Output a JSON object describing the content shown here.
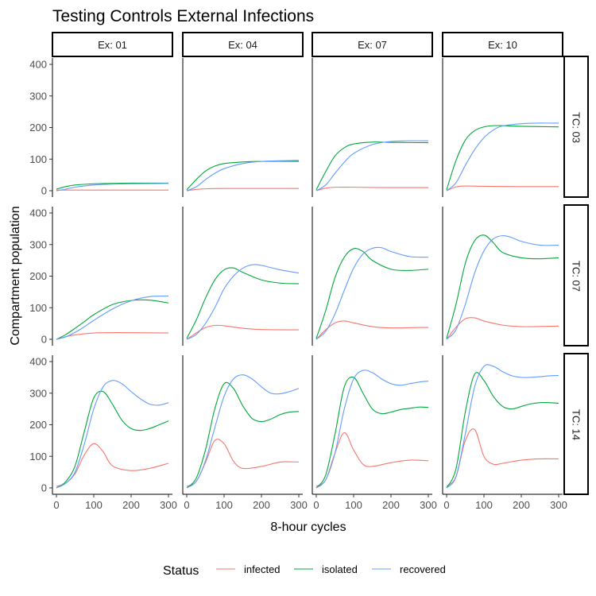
{
  "chart_data": {
    "type": "line",
    "title": "Testing Controls External Infections",
    "xlabel": "8-hour cycles",
    "ylabel": "Compartment population",
    "xlim": [
      0,
      300
    ],
    "ylim": [
      0,
      400
    ],
    "x_ticks": [
      0,
      100,
      200,
      300
    ],
    "y_ticks": [
      0,
      100,
      200,
      300,
      400
    ],
    "grid": false,
    "columns": [
      "Ex: 01",
      "Ex: 04",
      "Ex: 07",
      "Ex: 10"
    ],
    "rows": [
      "TC: 03",
      "TC: 07",
      "TC: 14"
    ],
    "legend": {
      "title": "Status",
      "position": "bottom",
      "entries": [
        "infected",
        "isolated",
        "recovered"
      ]
    },
    "colors": {
      "infected": "#F8766D",
      "isolated": "#00A83A",
      "recovered": "#619CFF"
    },
    "panels": [
      {
        "row": "TC: 03",
        "col": "Ex: 01",
        "series": [
          {
            "name": "infected",
            "x": [
              0,
              50,
              100,
              200,
              300
            ],
            "y": [
              2,
              2,
              2,
              2,
              2
            ]
          },
          {
            "name": "isolated",
            "x": [
              0,
              25,
              50,
              100,
              150,
              200,
              300
            ],
            "y": [
              5,
              13,
              18,
              22,
              23,
              24,
              24
            ]
          },
          {
            "name": "recovered",
            "x": [
              0,
              25,
              50,
              100,
              150,
              200,
              300
            ],
            "y": [
              0,
              5,
              11,
              18,
              21,
              22,
              23
            ]
          }
        ]
      },
      {
        "row": "TC: 03",
        "col": "Ex: 04",
        "series": [
          {
            "name": "infected",
            "x": [
              0,
              25,
              50,
              100,
              200,
              300
            ],
            "y": [
              0,
              4,
              6,
              7,
              7,
              7
            ]
          },
          {
            "name": "isolated",
            "x": [
              0,
              25,
              50,
              75,
              100,
              150,
              200,
              300
            ],
            "y": [
              3,
              35,
              62,
              78,
              86,
              91,
              93,
              93
            ]
          },
          {
            "name": "recovered",
            "x": [
              0,
              25,
              50,
              75,
              100,
              150,
              200,
              300
            ],
            "y": [
              0,
              12,
              35,
              55,
              70,
              86,
              93,
              96
            ]
          }
        ]
      },
      {
        "row": "TC: 03",
        "col": "Ex: 07",
        "series": [
          {
            "name": "infected",
            "x": [
              0,
              25,
              50,
              100,
              200,
              300
            ],
            "y": [
              0,
              8,
              11,
              11,
              10,
              10
            ]
          },
          {
            "name": "isolated",
            "x": [
              0,
              25,
              50,
              75,
              100,
              150,
              200,
              300
            ],
            "y": [
              3,
              60,
              110,
              136,
              148,
              154,
              153,
              152
            ]
          },
          {
            "name": "recovered",
            "x": [
              0,
              25,
              50,
              75,
              100,
              150,
              200,
              250,
              300
            ],
            "y": [
              0,
              18,
              55,
              90,
              118,
              146,
              156,
              158,
              158
            ]
          }
        ]
      },
      {
        "row": "TC: 03",
        "col": "Ex: 10",
        "series": [
          {
            "name": "infected",
            "x": [
              0,
              25,
              50,
              100,
              200,
              300
            ],
            "y": [
              0,
              12,
              15,
              14,
              13,
              13
            ]
          },
          {
            "name": "isolated",
            "x": [
              0,
              25,
              50,
              75,
              100,
              125,
              150,
              200,
              300
            ],
            "y": [
              3,
              95,
              160,
              190,
              202,
              206,
              206,
              204,
              202
            ]
          },
          {
            "name": "recovered",
            "x": [
              0,
              25,
              50,
              75,
              100,
              125,
              150,
              200,
              250,
              300
            ],
            "y": [
              0,
              25,
              80,
              130,
              168,
              192,
              205,
              212,
              214,
              214
            ]
          }
        ]
      },
      {
        "row": "TC: 07",
        "col": "Ex: 01",
        "series": [
          {
            "name": "infected",
            "x": [
              0,
              25,
              50,
              100,
              150,
              200,
              300
            ],
            "y": [
              0,
              8,
              14,
              20,
              21,
              21,
              20
            ]
          },
          {
            "name": "isolated",
            "x": [
              0,
              25,
              50,
              75,
              100,
              150,
              200,
              250,
              300
            ],
            "y": [
              0,
              15,
              35,
              56,
              78,
              110,
              123,
              124,
              115
            ]
          },
          {
            "name": "recovered",
            "x": [
              0,
              25,
              50,
              75,
              100,
              150,
              200,
              250,
              300
            ],
            "y": [
              0,
              8,
              22,
              40,
              60,
              96,
              122,
              135,
              137
            ]
          }
        ]
      },
      {
        "row": "TC: 07",
        "col": "Ex: 04",
        "series": [
          {
            "name": "infected",
            "x": [
              0,
              25,
              50,
              75,
              100,
              150,
              200,
              300
            ],
            "y": [
              0,
              20,
              37,
              44,
              43,
              35,
              31,
              30
            ]
          },
          {
            "name": "isolated",
            "x": [
              0,
              25,
              50,
              75,
              100,
              125,
              150,
              200,
              250,
              300
            ],
            "y": [
              3,
              60,
              130,
              188,
              220,
              226,
              212,
              188,
              178,
              176
            ]
          },
          {
            "name": "recovered",
            "x": [
              0,
              25,
              50,
              75,
              100,
              125,
              150,
              175,
              200,
              250,
              300
            ],
            "y": [
              0,
              15,
              50,
              100,
              160,
              200,
              225,
              236,
              234,
              220,
              210
            ]
          }
        ]
      },
      {
        "row": "TC: 07",
        "col": "Ex: 07",
        "series": [
          {
            "name": "infected",
            "x": [
              0,
              25,
              50,
              75,
              100,
              150,
              200,
              300
            ],
            "y": [
              0,
              30,
              52,
              58,
              52,
              40,
              36,
              38
            ]
          },
          {
            "name": "isolated",
            "x": [
              0,
              25,
              50,
              75,
              100,
              125,
              150,
              200,
              250,
              300
            ],
            "y": [
              3,
              90,
              195,
              260,
              287,
              278,
              250,
              222,
              218,
              222
            ]
          },
          {
            "name": "recovered",
            "x": [
              0,
              25,
              50,
              75,
              100,
              125,
              150,
              175,
              200,
              250,
              300
            ],
            "y": [
              0,
              25,
              80,
              155,
              225,
              270,
              288,
              290,
              278,
              262,
              260
            ]
          }
        ]
      },
      {
        "row": "TC: 07",
        "col": "Ex: 10",
        "series": [
          {
            "name": "infected",
            "x": [
              0,
              25,
              50,
              75,
              100,
              150,
              200,
              300
            ],
            "y": [
              0,
              38,
              65,
              68,
              58,
              45,
              40,
              42
            ]
          },
          {
            "name": "isolated",
            "x": [
              0,
              25,
              50,
              75,
              100,
              125,
              150,
              200,
              250,
              300
            ],
            "y": [
              3,
              110,
              240,
              312,
              330,
              306,
              275,
              258,
              255,
              258
            ]
          },
          {
            "name": "recovered",
            "x": [
              0,
              25,
              50,
              75,
              100,
              125,
              150,
              175,
              200,
              250,
              300
            ],
            "y": [
              0,
              30,
              110,
              210,
              280,
              318,
              328,
              322,
              310,
              298,
              298
            ]
          }
        ]
      },
      {
        "row": "TC: 14",
        "col": "Ex: 01",
        "series": [
          {
            "name": "infected",
            "x": [
              0,
              25,
              50,
              75,
              100,
              125,
              150,
              200,
              250,
              300
            ],
            "y": [
              5,
              15,
              45,
              105,
              140,
              115,
              70,
              55,
              62,
              78
            ]
          },
          {
            "name": "isolated",
            "x": [
              0,
              25,
              50,
              75,
              100,
              125,
              150,
              175,
              200,
              225,
              250,
              275,
              300
            ],
            "y": [
              0,
              20,
              70,
              180,
              285,
              305,
              265,
              215,
              188,
              182,
              188,
              200,
              212
            ]
          },
          {
            "name": "recovered",
            "x": [
              0,
              25,
              50,
              75,
              100,
              125,
              150,
              175,
              200,
              225,
              250,
              275,
              300
            ],
            "y": [
              0,
              15,
              50,
              140,
              250,
              320,
              340,
              330,
              305,
              282,
              265,
              262,
              270
            ]
          }
        ]
      },
      {
        "row": "TC: 14",
        "col": "Ex: 04",
        "series": [
          {
            "name": "infected",
            "x": [
              0,
              25,
              50,
              75,
              100,
              125,
              150,
              200,
              250,
              300
            ],
            "y": [
              5,
              20,
              80,
              150,
              140,
              85,
              62,
              68,
              82,
              82
            ]
          },
          {
            "name": "isolated",
            "x": [
              0,
              25,
              50,
              75,
              100,
              125,
              150,
              175,
              200,
              225,
              250,
              275,
              300
            ],
            "y": [
              0,
              30,
              120,
              250,
              330,
              315,
              260,
              220,
              210,
              218,
              232,
              240,
              242
            ]
          },
          {
            "name": "recovered",
            "x": [
              0,
              25,
              50,
              75,
              100,
              125,
              150,
              175,
              200,
              225,
              250,
              275,
              300
            ],
            "y": [
              0,
              20,
              85,
              190,
              290,
              345,
              358,
              345,
              320,
              300,
              298,
              305,
              315
            ]
          }
        ]
      },
      {
        "row": "TC: 14",
        "col": "Ex: 07",
        "series": [
          {
            "name": "infected",
            "x": [
              0,
              25,
              50,
              75,
              100,
              125,
              150,
              200,
              250,
              300
            ],
            "y": [
              5,
              25,
              110,
              175,
              120,
              75,
              68,
              80,
              88,
              86
            ]
          },
          {
            "name": "isolated",
            "x": [
              0,
              25,
              50,
              75,
              100,
              125,
              150,
              175,
              200,
              225,
              250,
              275,
              300
            ],
            "y": [
              0,
              40,
              170,
              320,
              350,
              300,
              250,
              235,
              240,
              248,
              252,
              256,
              255
            ]
          },
          {
            "name": "recovered",
            "x": [
              0,
              25,
              50,
              75,
              100,
              125,
              150,
              175,
              200,
              225,
              250,
              275,
              300
            ],
            "y": [
              0,
              25,
              110,
              250,
              345,
              372,
              365,
              345,
              330,
              325,
              330,
              335,
              338
            ]
          }
        ]
      },
      {
        "row": "TC: 14",
        "col": "Ex: 10",
        "series": [
          {
            "name": "infected",
            "x": [
              0,
              25,
              50,
              75,
              100,
              125,
              150,
              200,
              250,
              300
            ],
            "y": [
              5,
              35,
              150,
              185,
              100,
              75,
              78,
              88,
              92,
              92
            ]
          },
          {
            "name": "isolated",
            "x": [
              0,
              25,
              50,
              75,
              100,
              125,
              150,
              175,
              200,
              225,
              250,
              275,
              300
            ],
            "y": [
              0,
              60,
              240,
              360,
              340,
              290,
              258,
              250,
              258,
              266,
              270,
              270,
              268
            ]
          },
          {
            "name": "recovered",
            "x": [
              0,
              25,
              50,
              75,
              100,
              125,
              150,
              175,
              200,
              225,
              250,
              275,
              300
            ],
            "y": [
              0,
              35,
              170,
              320,
              385,
              385,
              368,
              355,
              350,
              350,
              352,
              355,
              356
            ]
          }
        ]
      }
    ]
  }
}
